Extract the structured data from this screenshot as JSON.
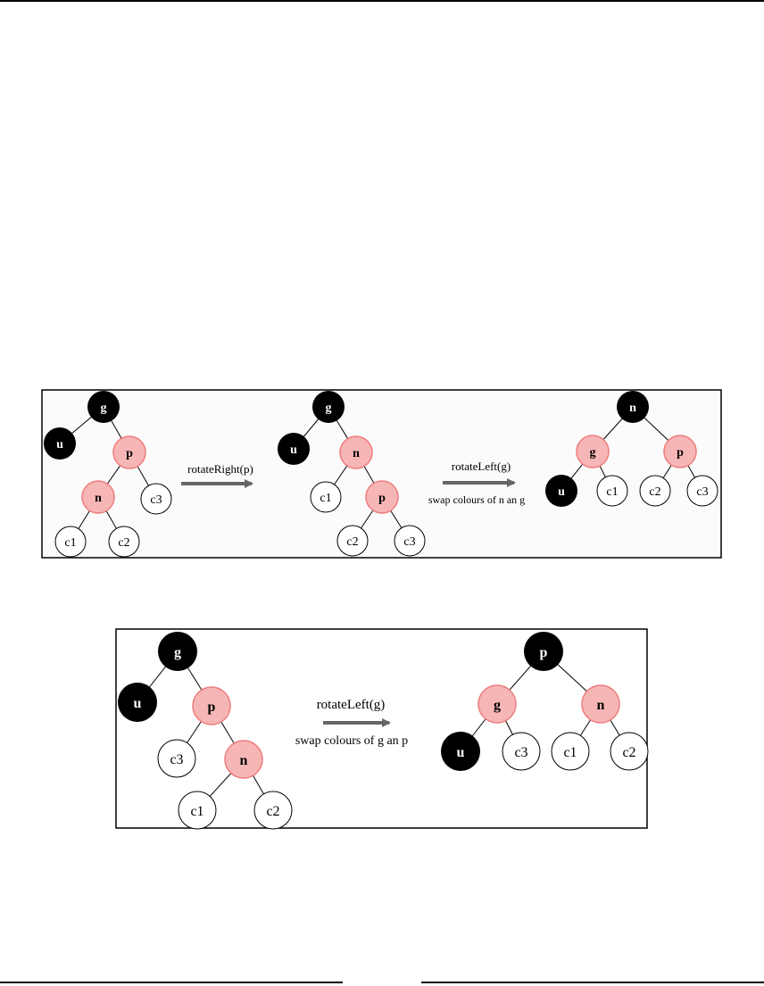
{
  "colors": {
    "black_node": "#000000",
    "red_node_fill": "#f7b6b6",
    "red_node_stroke": "#ee7c7c",
    "white_node": "#ffffff",
    "arrow": "#666666",
    "panel_bg": "#fbfbfb"
  },
  "figure1": {
    "step1_label": "rotateRight(p)",
    "step2_label": "rotateLeft(g)",
    "step2_sublabel": "swap colours of n an g",
    "tree_a": {
      "g": "g",
      "u": "u",
      "p": "p",
      "n": "n",
      "c1": "c1",
      "c2": "c2",
      "c3": "c3"
    },
    "tree_b": {
      "g": "g",
      "u": "u",
      "n": "n",
      "c1": "c1",
      "p": "p",
      "c2": "c2",
      "c3": "c3"
    },
    "tree_c": {
      "n": "n",
      "g": "g",
      "p": "p",
      "u": "u",
      "c1": "c1",
      "c2": "c2",
      "c3": "c3"
    }
  },
  "figure2": {
    "step_label": "rotateLeft(g)",
    "step_sublabel": "swap colours of g an p",
    "tree_a": {
      "g": "g",
      "u": "u",
      "p": "p",
      "c3": "c3",
      "n": "n",
      "c1": "c1",
      "c2": "c2"
    },
    "tree_b": {
      "p": "p",
      "g": "g",
      "n": "n",
      "u": "u",
      "c3": "c3",
      "c1": "c1",
      "c2": "c2"
    }
  }
}
